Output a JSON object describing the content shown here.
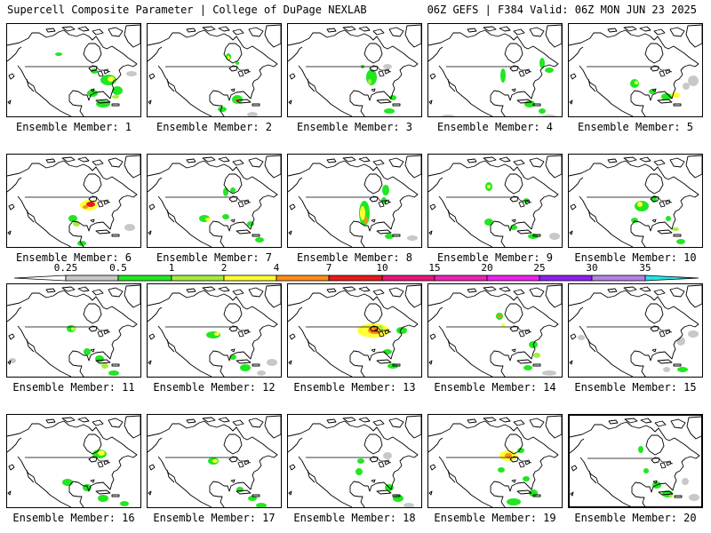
{
  "header": {
    "left": "Supercell Composite Parameter | College of DuPage NEXLAB",
    "right": "06Z GEFS | F384 Valid: 06Z MON JUN 23 2025"
  },
  "caption_prefix": "Ensemble Member: ",
  "members": [
    {
      "id": 1,
      "selected": false
    },
    {
      "id": 2,
      "selected": false
    },
    {
      "id": 3,
      "selected": false
    },
    {
      "id": 4,
      "selected": false
    },
    {
      "id": 5,
      "selected": false
    },
    {
      "id": 6,
      "selected": false
    },
    {
      "id": 7,
      "selected": false
    },
    {
      "id": 8,
      "selected": false
    },
    {
      "id": 9,
      "selected": false
    },
    {
      "id": 10,
      "selected": false
    },
    {
      "id": 11,
      "selected": false
    },
    {
      "id": 12,
      "selected": false
    },
    {
      "id": 13,
      "selected": false
    },
    {
      "id": 14,
      "selected": false
    },
    {
      "id": 15,
      "selected": false
    },
    {
      "id": 16,
      "selected": false
    },
    {
      "id": 17,
      "selected": false
    },
    {
      "id": 18,
      "selected": false
    },
    {
      "id": 19,
      "selected": false
    },
    {
      "id": 20,
      "selected": true
    }
  ],
  "colorbar": {
    "levels": [
      "0.25",
      "0.5",
      "1",
      "2",
      "4",
      "7",
      "10",
      "15",
      "20",
      "25",
      "30",
      "35"
    ],
    "colors": [
      "#c8c8c8",
      "#22e622",
      "#a6ed3c",
      "#ffff33",
      "#ff8c1a",
      "#e61a1a",
      "#e6157a",
      "#ee22b5",
      "#ee22ee",
      "#8a22ee",
      "#b482e6",
      "#22e6e6"
    ]
  }
}
